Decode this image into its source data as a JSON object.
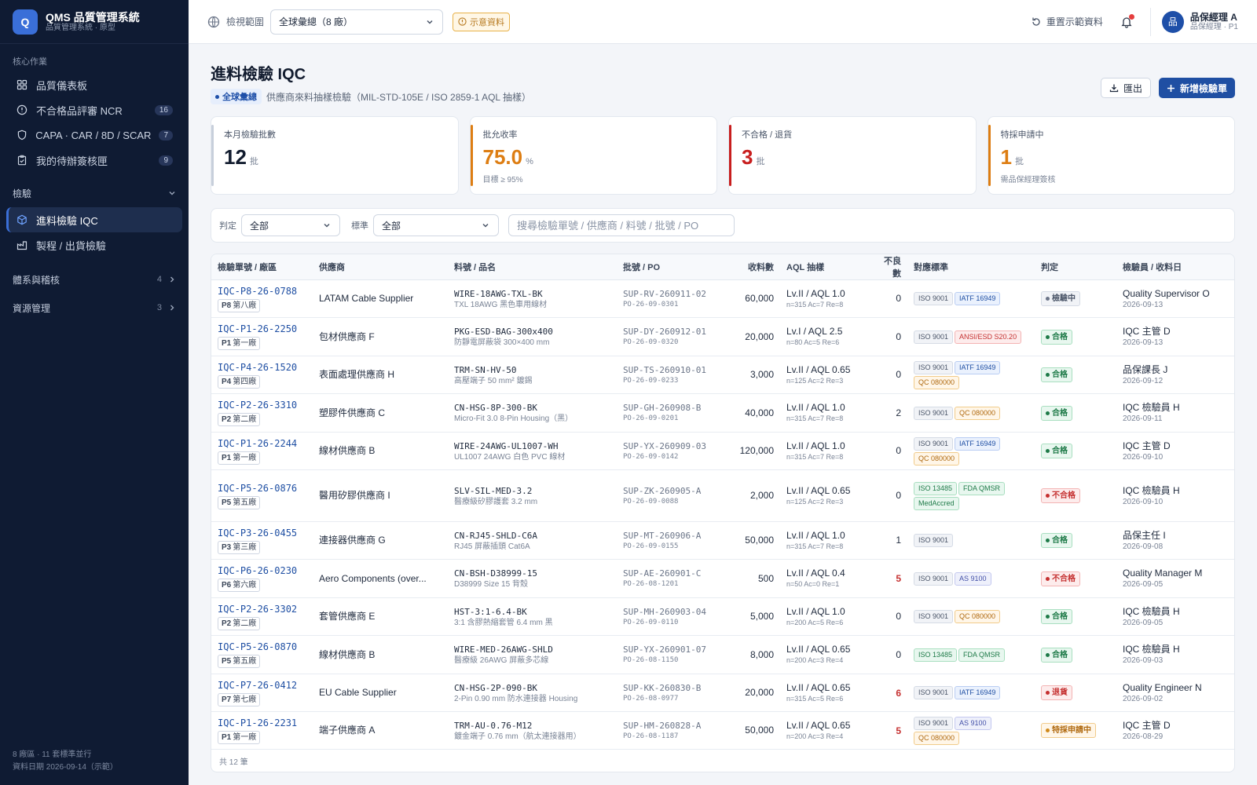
{
  "brand": {
    "logo": "Q",
    "title": "QMS 品質管理系統",
    "subtitle": "品質管理系統 · 原型"
  },
  "sidebar": {
    "core_label": "核心作業",
    "core_items": [
      {
        "label": "品質儀表板",
        "icon": "dashboard-icon"
      },
      {
        "label": "不合格品評審 NCR",
        "icon": "alert-circle-icon",
        "count": "16"
      },
      {
        "label": "CAPA · CAR / 8D / SCAR",
        "icon": "shield-icon",
        "count": "7"
      },
      {
        "label": "我的待辦簽核匣",
        "icon": "clipboard-check-icon",
        "count": "9"
      }
    ],
    "inspect_label": "檢驗",
    "inspect_items": [
      {
        "label": "進料檢驗 IQC",
        "icon": "box-icon"
      },
      {
        "label": "製程 / 出貨檢驗",
        "icon": "factory-icon"
      }
    ],
    "groups": [
      {
        "label": "體系與稽核",
        "count": "4"
      },
      {
        "label": "資源管理",
        "count": "3"
      }
    ],
    "footer_line1": "8 廠區 · 11 套標準並行",
    "footer_line2": "資料日期 2026-09-14（示範）"
  },
  "topbar": {
    "scope_label": "檢視範圍",
    "scope_value": "全球彙總（8 廠）",
    "demo_badge": "示意資料",
    "reset_label": "重置示範資料",
    "user_avatar": "品",
    "user_name": "品保經理 A",
    "user_role": "品保經理 · P1"
  },
  "page": {
    "title": "進料檢驗 IQC",
    "scope_pill": "全球彙總",
    "subtitle": "供應商來料抽樣檢驗（MIL-STD-105E / ISO 2859-1 AQL 抽樣）",
    "export_label": "匯出",
    "new_label": "新增檢驗單"
  },
  "kpis": [
    {
      "label": "本月檢驗批數",
      "value": "12",
      "unit": "批",
      "note": "",
      "color": "#111b2e",
      "bar": "#c7cfdb"
    },
    {
      "label": "批允收率",
      "value": "75.0",
      "unit": "%",
      "note": "目標 ≥ 95%",
      "color": "#dd7d12",
      "bar": "#dd7d12"
    },
    {
      "label": "不合格 / 退貨",
      "value": "3",
      "unit": "批",
      "note": "",
      "color": "#c81e1e",
      "bar": "#c81e1e"
    },
    {
      "label": "特採申請中",
      "value": "1",
      "unit": "批",
      "note": "需品保經理簽核",
      "color": "#dd7d12",
      "bar": "#dd7d12"
    }
  ],
  "filters": {
    "verdict_label": "判定",
    "verdict_value": "全部",
    "standard_label": "標準",
    "standard_value": "全部",
    "search_placeholder": "搜尋檢驗單號 / 供應商 / 料號 / 批號 / PO"
  },
  "table": {
    "headers": [
      "檢驗單號 / 廠區",
      "供應商",
      "料號 / 品名",
      "批號 / PO",
      "收料數",
      "AQL 抽樣",
      "不良數",
      "對應標準",
      "判定",
      "檢驗員 / 收料日"
    ],
    "rows": [
      {
        "id": "IQC-P8-26-0788",
        "plant_code": "P8",
        "plant_name": "第八廠",
        "supplier": "LATAM Cable Supplier",
        "pn": "WIRE-18AWG-TXL-BK",
        "pname": "TXL 18AWG 黑色車用線材",
        "lot": "SUP-RV-260911-02",
        "po": "PO-26-09-0301",
        "qty": "60,000",
        "aql": "Lv.II / AQL 1.0",
        "aql2": "n=315 Ac=7 Re=8",
        "def": "0",
        "red": false,
        "tags": [
          {
            "t": "ISO 9001",
            "c": "iso"
          },
          {
            "t": "IATF 16949",
            "c": "iatf"
          }
        ],
        "status": "檢驗中",
        "sc": "wip",
        "insp": "Quality Supervisor O",
        "date": "2026-09-13"
      },
      {
        "id": "IQC-P1-26-2250",
        "plant_code": "P1",
        "plant_name": "第一廠",
        "supplier": "包材供應商 F",
        "pn": "PKG-ESD-BAG-300x400",
        "pname": "防靜電屏蔽袋 300×400 mm",
        "lot": "SUP-DY-260912-01",
        "po": "PO-26-09-0320",
        "qty": "20,000",
        "aql": "Lv.I / AQL 2.5",
        "aql2": "n=80 Ac=5 Re=6",
        "def": "0",
        "red": false,
        "tags": [
          {
            "t": "ISO 9001",
            "c": "iso"
          },
          {
            "t": "ANSI/ESD S20.20",
            "c": "ansi"
          }
        ],
        "status": "合格",
        "sc": "pass",
        "insp": "IQC 主管 D",
        "date": "2026-09-13"
      },
      {
        "id": "IQC-P4-26-1520",
        "plant_code": "P4",
        "plant_name": "第四廠",
        "supplier": "表面處理供應商 H",
        "pn": "TRM-SN-HV-50",
        "pname": "高壓端子 50 mm² 鍍錫",
        "lot": "SUP-TS-260910-01",
        "po": "PO-26-09-0233",
        "qty": "3,000",
        "aql": "Lv.II / AQL 0.65",
        "aql2": "n=125 Ac=2 Re=3",
        "def": "0",
        "red": false,
        "tags": [
          {
            "t": "ISO 9001",
            "c": "iso"
          },
          {
            "t": "IATF 16949",
            "c": "iatf"
          },
          {
            "t": "QC 080000",
            "c": "qc"
          }
        ],
        "status": "合格",
        "sc": "pass",
        "insp": "品保課長 J",
        "date": "2026-09-12"
      },
      {
        "id": "IQC-P2-26-3310",
        "plant_code": "P2",
        "plant_name": "第二廠",
        "supplier": "塑膠件供應商 C",
        "pn": "CN-HSG-8P-300-BK",
        "pname": "Micro-Fit 3.0 8-Pin Housing（黑）",
        "lot": "SUP-GH-260908-B",
        "po": "PO-26-09-0201",
        "qty": "40,000",
        "aql": "Lv.II / AQL 1.0",
        "aql2": "n=315 Ac=7 Re=8",
        "def": "2",
        "red": false,
        "tags": [
          {
            "t": "ISO 9001",
            "c": "iso"
          },
          {
            "t": "QC 080000",
            "c": "qc"
          }
        ],
        "status": "合格",
        "sc": "pass",
        "insp": "IQC 檢驗員 H",
        "date": "2026-09-11"
      },
      {
        "id": "IQC-P1-26-2244",
        "plant_code": "P1",
        "plant_name": "第一廠",
        "supplier": "線材供應商 B",
        "pn": "WIRE-24AWG-UL1007-WH",
        "pname": "UL1007 24AWG 白色 PVC 線材",
        "lot": "SUP-YX-260909-03",
        "po": "PO-26-09-0142",
        "qty": "120,000",
        "aql": "Lv.II / AQL 1.0",
        "aql2": "n=315 Ac=7 Re=8",
        "def": "0",
        "red": false,
        "tags": [
          {
            "t": "ISO 9001",
            "c": "iso"
          },
          {
            "t": "IATF 16949",
            "c": "iatf"
          },
          {
            "t": "QC 080000",
            "c": "qc"
          }
        ],
        "status": "合格",
        "sc": "pass",
        "insp": "IQC 主管 D",
        "date": "2026-09-10"
      },
      {
        "id": "IQC-P5-26-0876",
        "plant_code": "P5",
        "plant_name": "第五廠",
        "supplier": "醫用矽膠供應商 I",
        "pn": "SLV-SIL-MED-3.2",
        "pname": "醫療級矽膠護套 3.2 mm",
        "lot": "SUP-ZK-260905-A",
        "po": "PO-26-09-0088",
        "qty": "2,000",
        "aql": "Lv.II / AQL 0.65",
        "aql2": "n=125 Ac=2 Re=3",
        "def": "0",
        "red": false,
        "tags": [
          {
            "t": "ISO 13485",
            "c": "green"
          },
          {
            "t": "FDA QMSR",
            "c": "green"
          },
          {
            "t": "MedAccred",
            "c": "green"
          }
        ],
        "status": "不合格",
        "sc": "fail",
        "insp": "IQC 檢驗員 H",
        "date": "2026-09-10"
      },
      {
        "id": "IQC-P3-26-0455",
        "plant_code": "P3",
        "plant_name": "第三廠",
        "supplier": "連接器供應商 G",
        "pn": "CN-RJ45-SHLD-C6A",
        "pname": "RJ45 屏蔽插頭 Cat6A",
        "lot": "SUP-MT-260906-A",
        "po": "PO-26-09-0155",
        "qty": "50,000",
        "aql": "Lv.II / AQL 1.0",
        "aql2": "n=315 Ac=7 Re=8",
        "def": "1",
        "red": false,
        "tags": [
          {
            "t": "ISO 9001",
            "c": "iso"
          }
        ],
        "status": "合格",
        "sc": "pass",
        "insp": "品保主任 I",
        "date": "2026-09-08"
      },
      {
        "id": "IQC-P6-26-0230",
        "plant_code": "P6",
        "plant_name": "第六廠",
        "supplier": "Aero Components (over...",
        "pn": "CN-BSH-D38999-15",
        "pname": "D38999 Size 15 背殼",
        "lot": "SUP-AE-260901-C",
        "po": "PO-26-08-1201",
        "qty": "500",
        "aql": "Lv.II / AQL 0.4",
        "aql2": "n=50 Ac=0 Re=1",
        "def": "5",
        "red": true,
        "tags": [
          {
            "t": "ISO 9001",
            "c": "iso"
          },
          {
            "t": "AS 9100",
            "c": "as"
          }
        ],
        "status": "不合格",
        "sc": "fail",
        "insp": "Quality Manager M",
        "date": "2026-09-05"
      },
      {
        "id": "IQC-P2-26-3302",
        "plant_code": "P2",
        "plant_name": "第二廠",
        "supplier": "套管供應商 E",
        "pn": "HST-3:1-6.4-BK",
        "pname": "3:1 含膠熱縮套管 6.4 mm 黑",
        "lot": "SUP-MH-260903-04",
        "po": "PO-26-09-0110",
        "qty": "5,000",
        "aql": "Lv.II / AQL 1.0",
        "aql2": "n=200 Ac=5 Re=6",
        "def": "0",
        "red": false,
        "tags": [
          {
            "t": "ISO 9001",
            "c": "iso"
          },
          {
            "t": "QC 080000",
            "c": "qc"
          }
        ],
        "status": "合格",
        "sc": "pass",
        "insp": "IQC 檢驗員 H",
        "date": "2026-09-05"
      },
      {
        "id": "IQC-P5-26-0870",
        "plant_code": "P5",
        "plant_name": "第五廠",
        "supplier": "線材供應商 B",
        "pn": "WIRE-MED-26AWG-SHLD",
        "pname": "醫療級 26AWG 屏蔽多芯線",
        "lot": "SUP-YX-260901-07",
        "po": "PO-26-08-1150",
        "qty": "8,000",
        "aql": "Lv.II / AQL 0.65",
        "aql2": "n=200 Ac=3 Re=4",
        "def": "0",
        "red": false,
        "tags": [
          {
            "t": "ISO 13485",
            "c": "green"
          },
          {
            "t": "FDA QMSR",
            "c": "green"
          }
        ],
        "status": "合格",
        "sc": "pass",
        "insp": "IQC 檢驗員 H",
        "date": "2026-09-03"
      },
      {
        "id": "IQC-P7-26-0412",
        "plant_code": "P7",
        "plant_name": "第七廠",
        "supplier": "EU Cable Supplier",
        "pn": "CN-HSG-2P-090-BK",
        "pname": "2-Pin 0.90 mm 防水連接器 Housing",
        "lot": "SUP-KK-260830-B",
        "po": "PO-26-08-0977",
        "qty": "20,000",
        "aql": "Lv.II / AQL 0.65",
        "aql2": "n=315 Ac=5 Re=6",
        "def": "6",
        "red": true,
        "tags": [
          {
            "t": "ISO 9001",
            "c": "iso"
          },
          {
            "t": "IATF 16949",
            "c": "iatf"
          }
        ],
        "status": "退貨",
        "sc": "fail",
        "insp": "Quality Engineer N",
        "date": "2026-09-02"
      },
      {
        "id": "IQC-P1-26-2231",
        "plant_code": "P1",
        "plant_name": "第一廠",
        "supplier": "端子供應商 A",
        "pn": "TRM-AU-0.76-M12",
        "pname": "鍍金端子 0.76 mm（航太連接器用）",
        "lot": "SUP-HM-260828-A",
        "po": "PO-26-08-1187",
        "qty": "50,000",
        "aql": "Lv.II / AQL 0.65",
        "aql2": "n=200 Ac=3 Re=4",
        "def": "5",
        "red": true,
        "tags": [
          {
            "t": "ISO 9001",
            "c": "iso"
          },
          {
            "t": "AS 9100",
            "c": "as"
          },
          {
            "t": "QC 080000",
            "c": "qc"
          }
        ],
        "status": "特採申請中",
        "sc": "dev",
        "insp": "IQC 主管 D",
        "date": "2026-08-29"
      }
    ],
    "footer": "共 12 筆"
  }
}
